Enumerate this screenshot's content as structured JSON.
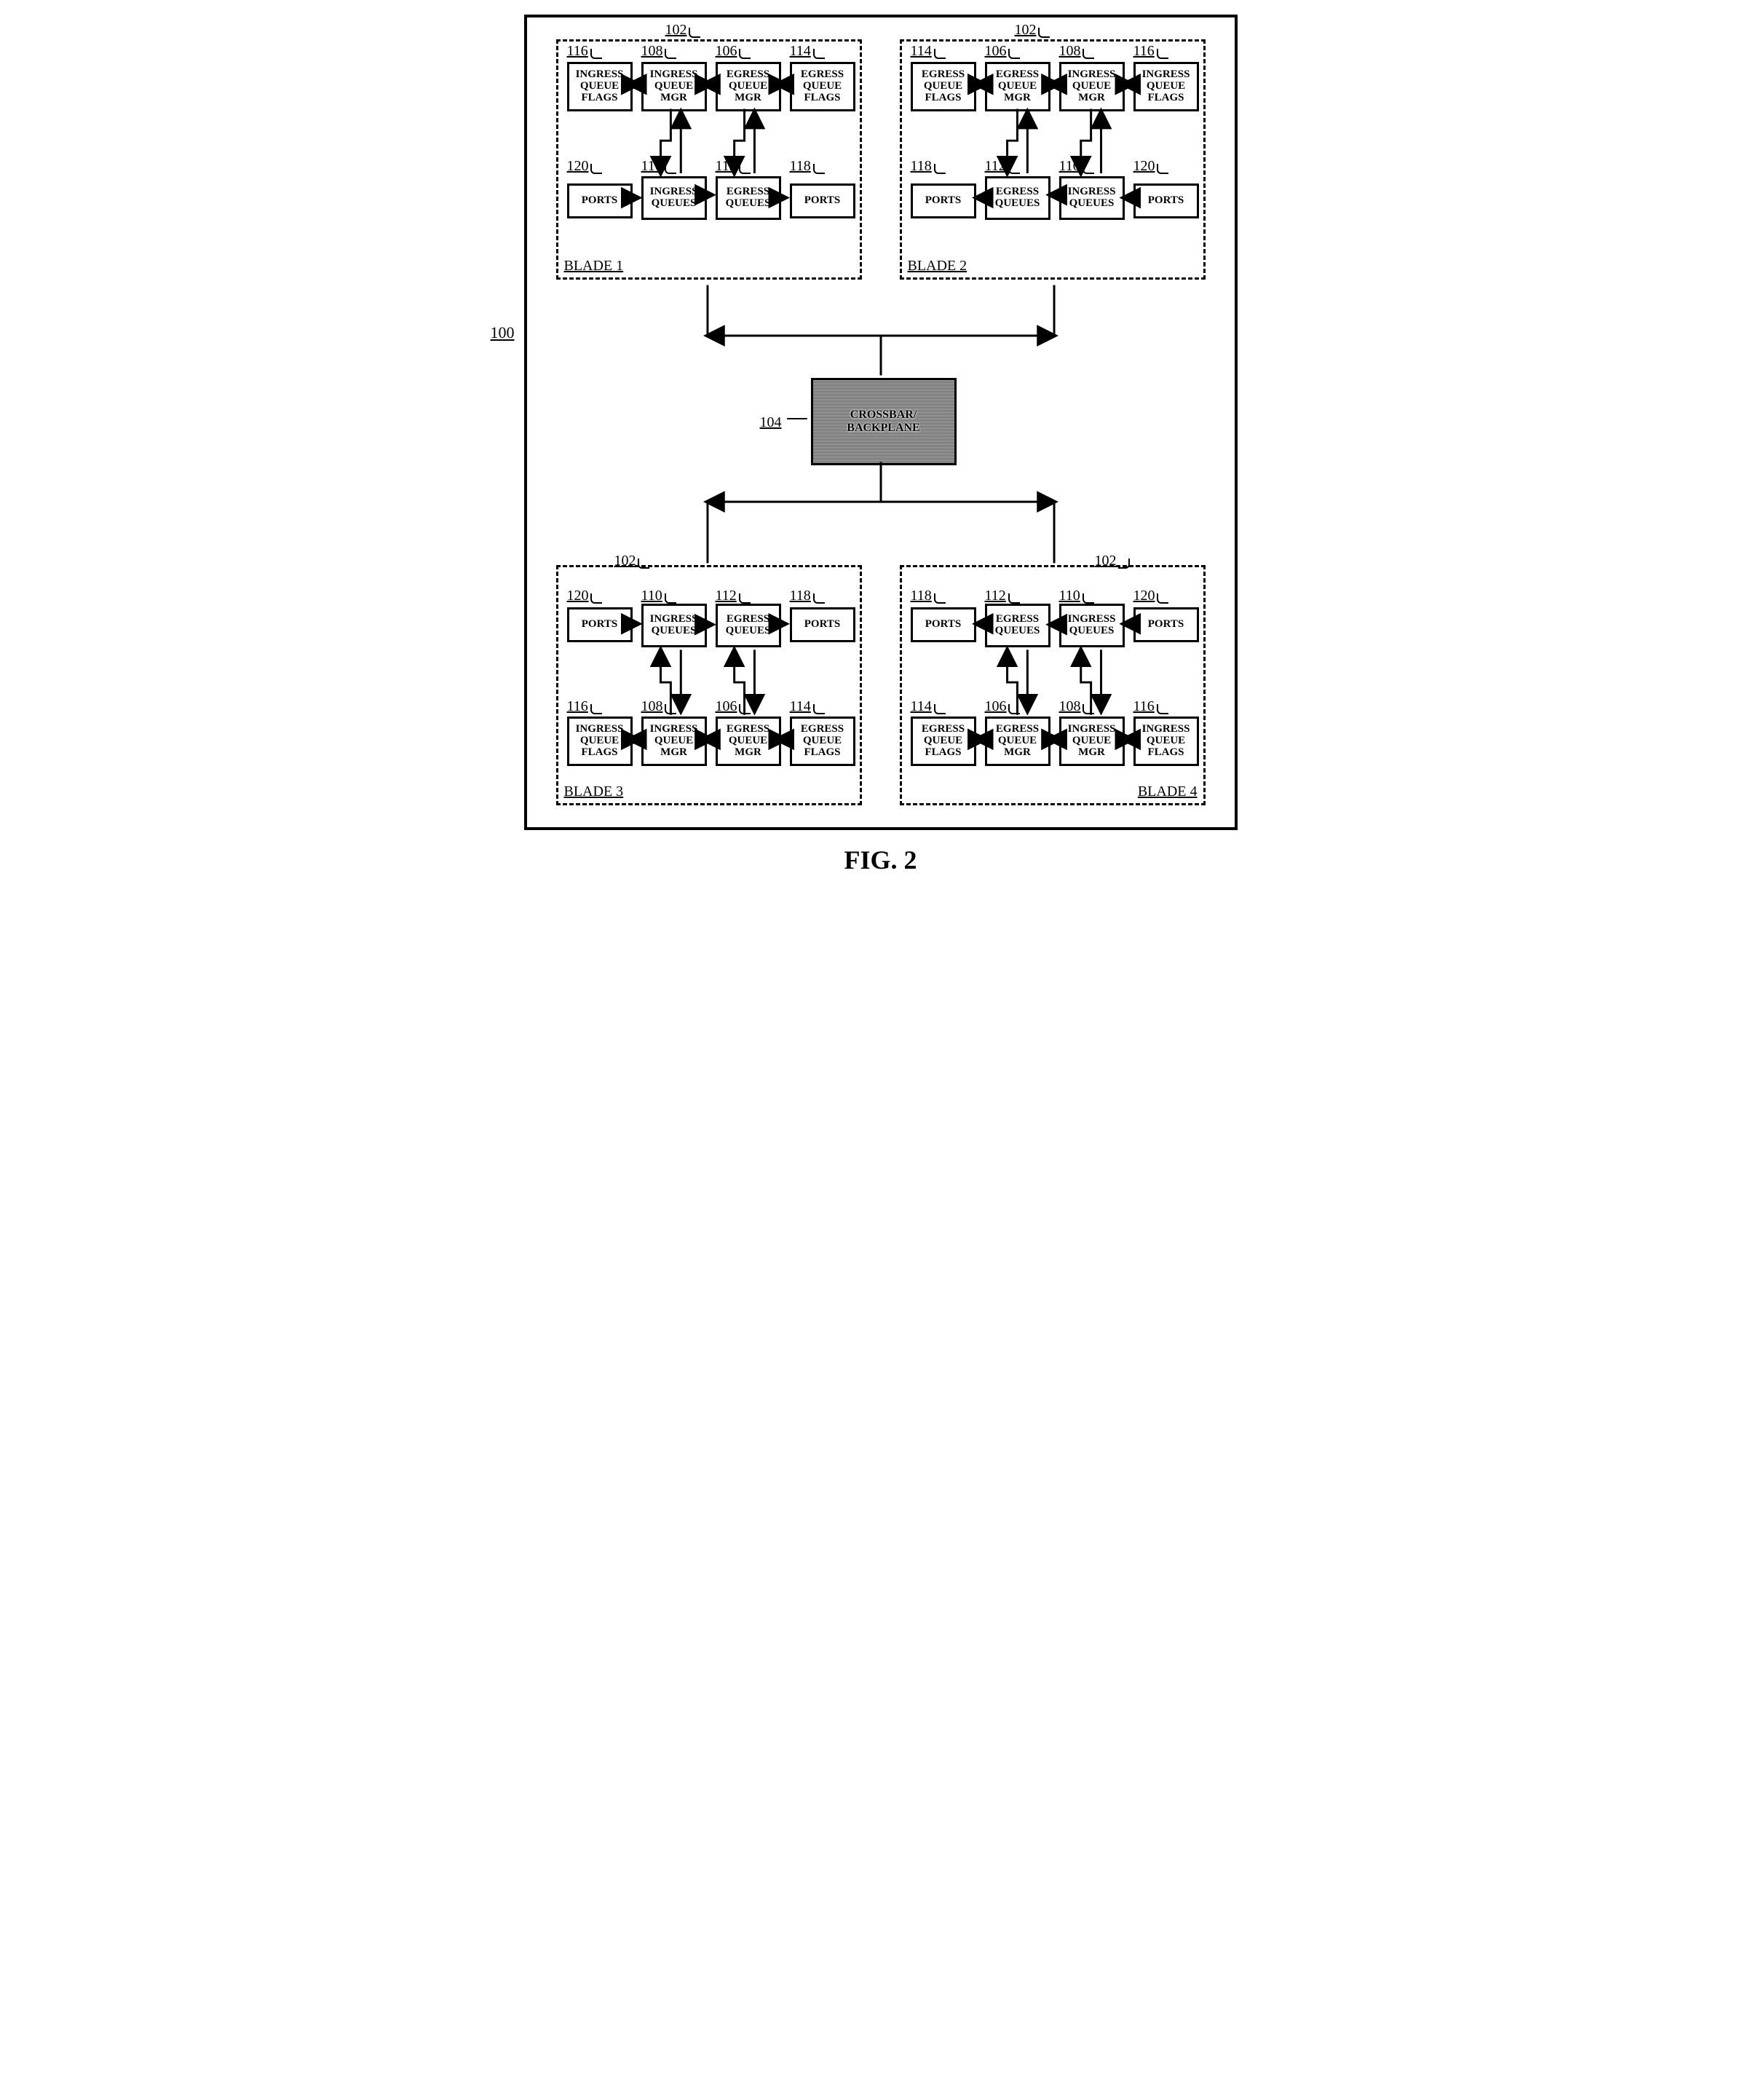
{
  "figure_label": "FIG. 2",
  "system_ref": "100",
  "crossbar": {
    "ref": "104",
    "label": "CROSSBAR/\nBACKPLANE"
  },
  "blade_ref": "102",
  "refs": {
    "egress_mgr": "106",
    "ingress_mgr": "108",
    "ingress_q": "110",
    "egress_q": "112",
    "egress_flags": "114",
    "ingress_flags": "116",
    "ports_egress": "118",
    "ports_ingress": "120"
  },
  "labels": {
    "egress_flags": "EGRESS\nQUEUE\nFLAGS",
    "egress_mgr": "EGRESS\nQUEUE\nMGR",
    "ingress_mgr": "INGRESS\nQUEUE\nMGR",
    "ingress_flags": "INGRESS\nQUEUE\nFLAGS",
    "egress_q": "EGRESS\nQUEUES",
    "ingress_q": "INGRESS\nQUEUES",
    "ports": "PORTS"
  },
  "blade_labels": {
    "b1": "BLADE 1",
    "b2": "BLADE 2",
    "b3": "BLADE 3",
    "b4": "BLADE 4"
  },
  "colors": {
    "stroke": "#000000",
    "bg": "#ffffff"
  },
  "box_dims": {
    "w": 90,
    "h": 68,
    "small_h": 48
  },
  "arrow": {
    "head": 10,
    "stroke_w": 3
  }
}
